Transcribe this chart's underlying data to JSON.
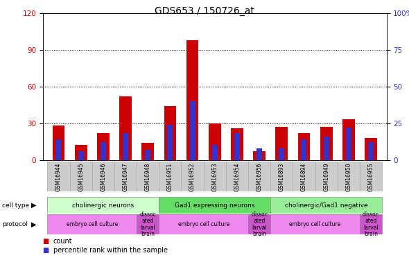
{
  "title": "GDS653 / 150726_at",
  "samples": [
    "GSM16944",
    "GSM16945",
    "GSM16946",
    "GSM16947",
    "GSM16948",
    "GSM16951",
    "GSM16952",
    "GSM16953",
    "GSM16954",
    "GSM16956",
    "GSM16893",
    "GSM16894",
    "GSM16949",
    "GSM16950",
    "GSM16955"
  ],
  "count_values": [
    28,
    12,
    22,
    52,
    14,
    44,
    98,
    30,
    26,
    7,
    27,
    22,
    27,
    33,
    18
  ],
  "percentile_values": [
    14,
    6,
    12,
    18,
    7,
    24,
    40,
    10,
    18,
    8,
    8,
    14,
    16,
    22,
    12
  ],
  "count_color": "#cc0000",
  "percentile_color": "#3333cc",
  "left_ylim": [
    0,
    120
  ],
  "right_ylim": [
    0,
    100
  ],
  "left_yticks": [
    0,
    30,
    60,
    90,
    120
  ],
  "right_yticks": [
    0,
    25,
    50,
    75,
    100
  ],
  "right_yticklabels": [
    "0",
    "25",
    "50",
    "75",
    "100%"
  ],
  "cell_type_groups": [
    {
      "label": "cholinergic neurons",
      "start": 0,
      "end": 5,
      "color": "#ccffcc"
    },
    {
      "label": "Gad1 expressing neurons",
      "start": 5,
      "end": 10,
      "color": "#66dd66"
    },
    {
      "label": "cholinergic/Gad1 negative",
      "start": 10,
      "end": 15,
      "color": "#99ee99"
    }
  ],
  "protocol_groups": [
    {
      "label": "embryo cell culture",
      "start": 0,
      "end": 4,
      "color": "#ee88ee"
    },
    {
      "label": "dissoc\nated\nlarval\nbrain",
      "start": 4,
      "end": 5,
      "color": "#cc55cc"
    },
    {
      "label": "embryo cell culture",
      "start": 5,
      "end": 9,
      "color": "#ee88ee"
    },
    {
      "label": "dissoc\nated\nlarval\nbrain",
      "start": 9,
      "end": 10,
      "color": "#cc55cc"
    },
    {
      "label": "embryo cell culture",
      "start": 10,
      "end": 14,
      "color": "#ee88ee"
    },
    {
      "label": "dissoc\nated\nlarval\nbrain",
      "start": 14,
      "end": 15,
      "color": "#cc55cc"
    }
  ],
  "cell_type_row_label": "cell type",
  "protocol_row_label": "protocol",
  "legend_count_label": "count",
  "legend_pct_label": "percentile rank within the sample",
  "background_color": "#ffffff",
  "grid_color": "#000000",
  "tick_label_color_left": "#cc0000",
  "tick_label_color_right": "#3333cc",
  "title_fontsize": 10,
  "tick_fontsize": 7.5,
  "sample_box_color": "#cccccc"
}
